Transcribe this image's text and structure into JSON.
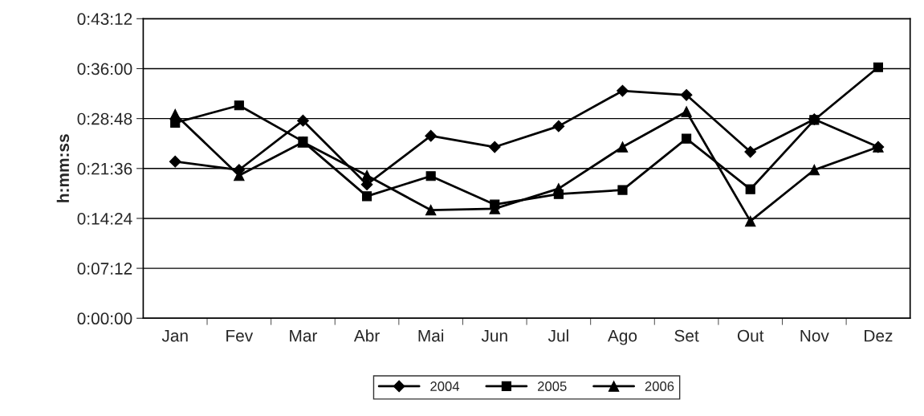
{
  "chart_data": {
    "type": "line",
    "ylabel": "h:mm:ss",
    "categories": [
      "Jan",
      "Fev",
      "Mar",
      "Abr",
      "Mai",
      "Jun",
      "Jul",
      "Ago",
      "Set",
      "Out",
      "Nov",
      "Dez"
    ],
    "series": [
      {
        "name": "2004",
        "color": "#000000",
        "marker": "diamond",
        "values": [
          22.6,
          21.4,
          28.5,
          19.3,
          26.3,
          24.7,
          27.7,
          32.8,
          32.2,
          24.0,
          28.7,
          24.7
        ]
      },
      {
        "name": "2005",
        "color": "#000000",
        "marker": "square",
        "values": [
          28.2,
          30.7,
          25.5,
          17.6,
          20.5,
          16.4,
          17.9,
          18.5,
          25.9,
          18.6,
          28.6,
          36.2
        ]
      },
      {
        "name": "2006",
        "color": "#000000",
        "marker": "triangle",
        "values": [
          29.4,
          20.6,
          25.4,
          20.6,
          15.6,
          15.8,
          18.7,
          24.7,
          29.8,
          14.0,
          21.4,
          24.7
        ]
      }
    ],
    "ylim": [
      0,
      43.2
    ],
    "yticks": [
      {
        "value": 0,
        "label": "0:00:00"
      },
      {
        "value": 7.2,
        "label": "0:07:12"
      },
      {
        "value": 14.4,
        "label": "0:14:24"
      },
      {
        "value": 21.6,
        "label": "0:21:36"
      },
      {
        "value": 28.8,
        "label": "0:28:48"
      },
      {
        "value": 36,
        "label": "0:36:00"
      },
      {
        "value": 43.2,
        "label": "0:43:12"
      }
    ],
    "grid": "y",
    "legend": "bottom",
    "line_style": "solid"
  }
}
